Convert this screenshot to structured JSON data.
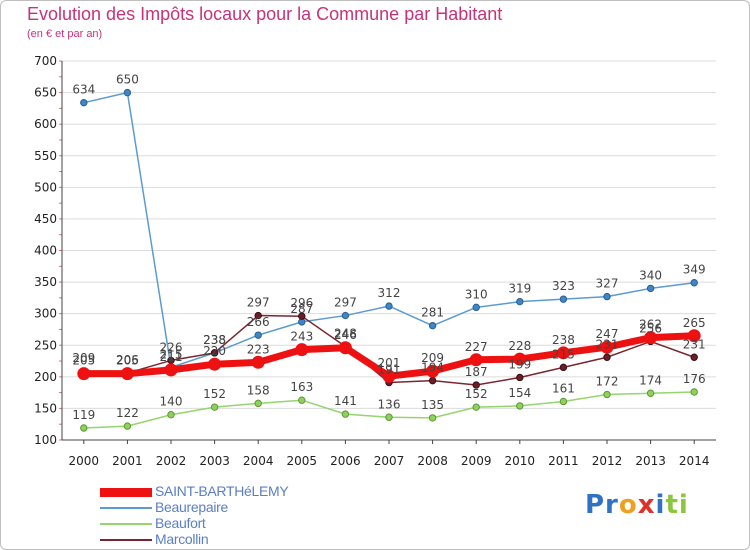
{
  "title": "Evolution des Impôts locaux pour la Commune par Habitant",
  "subtitle": "(en € et par an)",
  "colors": {
    "title": "#c8327a",
    "SAINT-BARTHéLEMY": "#ee1111",
    "Beaurepaire": "#5c9bd1",
    "Beaufort": "#95d46e",
    "Marcollin": "#7a2630",
    "legend_text": "#5a7fc4"
  },
  "logo": {
    "parts": [
      "Pr",
      "o",
      "x",
      "i",
      "ti"
    ]
  },
  "chart_data": {
    "type": "line",
    "title": "Evolution des Impôts locaux pour la Commune par Habitant",
    "subtitle": "(en € et par an)",
    "xlabel": "",
    "ylabel": "",
    "ylim": [
      100,
      700
    ],
    "yticks": [
      100,
      150,
      200,
      250,
      300,
      350,
      400,
      450,
      500,
      550,
      600,
      650,
      700
    ],
    "grid": true,
    "categories": [
      "2000",
      "2001",
      "2002",
      "2003",
      "2004",
      "2005",
      "2006",
      "2007",
      "2008",
      "2009",
      "2010",
      "2011",
      "2012",
      "2013",
      "2014"
    ],
    "series": [
      {
        "name": "SAINT-BARTHéLEMY",
        "values": [
          205,
          205,
          211,
          220,
          223,
          243,
          246,
          201,
          209,
          227,
          228,
          238,
          247,
          262,
          265
        ]
      },
      {
        "name": "Beaurepaire",
        "values": [
          634,
          650,
          215,
          238,
          266,
          287,
          297,
          312,
          281,
          310,
          319,
          323,
          327,
          340,
          349
        ]
      },
      {
        "name": "Beaufort",
        "values": [
          119,
          122,
          140,
          152,
          158,
          163,
          141,
          136,
          135,
          152,
          154,
          161,
          172,
          174,
          176
        ]
      },
      {
        "name": "Marcollin",
        "values": [
          209,
          206,
          226,
          238,
          297,
          296,
          248,
          191,
          194,
          187,
          199,
          215,
          231,
          256,
          231
        ]
      }
    ]
  }
}
